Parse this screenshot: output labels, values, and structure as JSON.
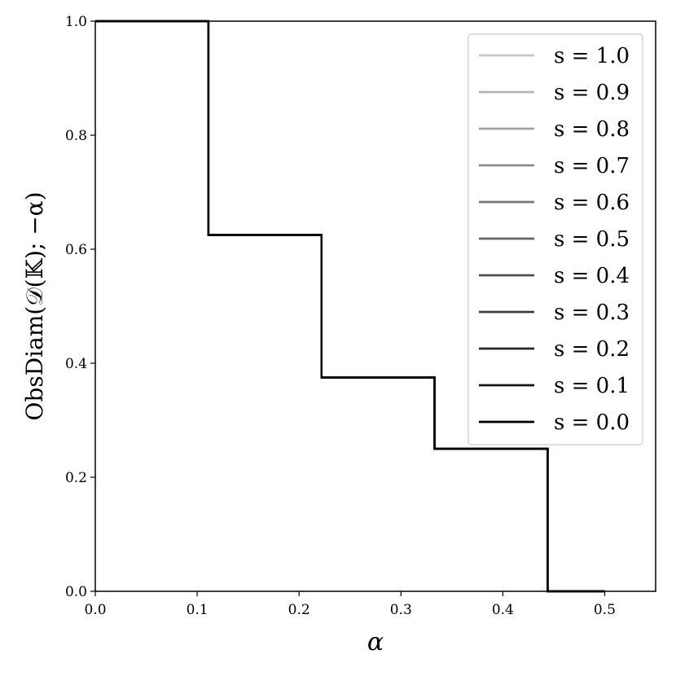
{
  "chart_data": {
    "type": "line",
    "xlabel": "α",
    "ylabel": "ObsDiam(𝒟(𝕂); −α)",
    "xlim": [
      0.0,
      0.55
    ],
    "ylim": [
      0.0,
      1.0
    ],
    "x_ticks": [
      "0.0",
      "0.1",
      "0.2",
      "0.3",
      "0.4",
      "0.5"
    ],
    "y_ticks": [
      "0.0",
      "0.2",
      "0.4",
      "0.6",
      "0.8",
      "1.0"
    ],
    "grid": false,
    "legend_position": "top-right",
    "step_x": [
      0.0,
      0.111,
      0.222,
      0.333,
      0.444,
      0.5
    ],
    "step_y": [
      1.0,
      0.625,
      0.375,
      0.25,
      0.0
    ],
    "series": [
      {
        "name": "s = 1.0",
        "color": "#c8c8c8",
        "x": [
          0.0,
          0.111,
          0.111,
          0.222,
          0.222,
          0.333,
          0.333,
          0.444,
          0.444,
          0.5
        ],
        "y": [
          1.0,
          1.0,
          0.625,
          0.625,
          0.375,
          0.375,
          0.25,
          0.25,
          0.0,
          0.0
        ]
      },
      {
        "name": "s = 0.9",
        "color": "#b4b4b4",
        "x": [
          0.0,
          0.111,
          0.111,
          0.222,
          0.222,
          0.333,
          0.333,
          0.444,
          0.444,
          0.5
        ],
        "y": [
          1.0,
          1.0,
          0.625,
          0.625,
          0.375,
          0.375,
          0.25,
          0.25,
          0.0,
          0.0
        ]
      },
      {
        "name": "s = 0.8",
        "color": "#a0a0a0",
        "x": [
          0.0,
          0.111,
          0.111,
          0.222,
          0.222,
          0.333,
          0.333,
          0.444,
          0.444,
          0.5
        ],
        "y": [
          1.0,
          1.0,
          0.625,
          0.625,
          0.375,
          0.375,
          0.25,
          0.25,
          0.0,
          0.0
        ]
      },
      {
        "name": "s = 0.7",
        "color": "#8c8c8c",
        "x": [
          0.0,
          0.111,
          0.111,
          0.222,
          0.222,
          0.333,
          0.333,
          0.444,
          0.444,
          0.5
        ],
        "y": [
          1.0,
          1.0,
          0.625,
          0.625,
          0.375,
          0.375,
          0.25,
          0.25,
          0.0,
          0.0
        ]
      },
      {
        "name": "s = 0.6",
        "color": "#787878",
        "x": [
          0.0,
          0.111,
          0.111,
          0.222,
          0.222,
          0.333,
          0.333,
          0.444,
          0.444,
          0.5
        ],
        "y": [
          1.0,
          1.0,
          0.625,
          0.625,
          0.375,
          0.375,
          0.25,
          0.25,
          0.0,
          0.0
        ]
      },
      {
        "name": "s = 0.5",
        "color": "#646464",
        "x": [
          0.0,
          0.111,
          0.111,
          0.222,
          0.222,
          0.333,
          0.333,
          0.444,
          0.444,
          0.5
        ],
        "y": [
          1.0,
          1.0,
          0.625,
          0.625,
          0.375,
          0.375,
          0.25,
          0.25,
          0.0,
          0.0
        ]
      },
      {
        "name": "s = 0.4",
        "color": "#505050",
        "x": [
          0.0,
          0.111,
          0.111,
          0.222,
          0.222,
          0.333,
          0.333,
          0.444,
          0.444,
          0.5
        ],
        "y": [
          1.0,
          1.0,
          0.625,
          0.625,
          0.375,
          0.375,
          0.25,
          0.25,
          0.0,
          0.0
        ]
      },
      {
        "name": "s = 0.3",
        "color": "#3c3c3c",
        "x": [
          0.0,
          0.111,
          0.111,
          0.222,
          0.222,
          0.333,
          0.333,
          0.444,
          0.444,
          0.5
        ],
        "y": [
          1.0,
          1.0,
          0.625,
          0.625,
          0.375,
          0.375,
          0.25,
          0.25,
          0.0,
          0.0
        ]
      },
      {
        "name": "s = 0.2",
        "color": "#282828",
        "x": [
          0.0,
          0.111,
          0.111,
          0.222,
          0.222,
          0.333,
          0.333,
          0.444,
          0.444,
          0.5
        ],
        "y": [
          1.0,
          1.0,
          0.625,
          0.625,
          0.375,
          0.375,
          0.25,
          0.25,
          0.0,
          0.0
        ]
      },
      {
        "name": "s = 0.1",
        "color": "#141414",
        "x": [
          0.0,
          0.111,
          0.111,
          0.222,
          0.222,
          0.333,
          0.333,
          0.444,
          0.444,
          0.5
        ],
        "y": [
          1.0,
          1.0,
          0.625,
          0.625,
          0.375,
          0.375,
          0.25,
          0.25,
          0.0,
          0.0
        ]
      },
      {
        "name": "s = 0.0",
        "color": "#000000",
        "x": [
          0.0,
          0.111,
          0.111,
          0.222,
          0.222,
          0.333,
          0.333,
          0.444,
          0.444,
          0.5
        ],
        "y": [
          1.0,
          1.0,
          0.625,
          0.625,
          0.375,
          0.375,
          0.25,
          0.25,
          0.0,
          0.0
        ]
      }
    ]
  }
}
